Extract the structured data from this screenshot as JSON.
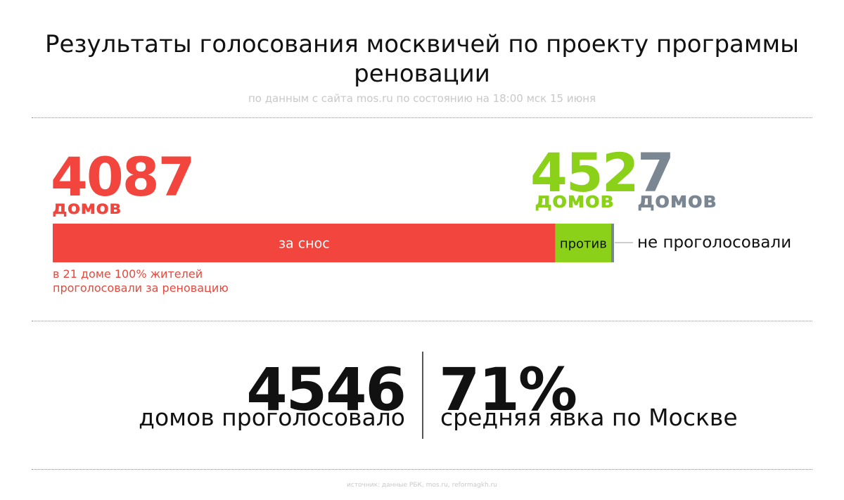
{
  "header": {
    "title": "Результаты голосования москвичей по проекту программы реновации",
    "subtitle": "по данным с сайта mos.ru по состоянию на 18:00 мск 15 июня"
  },
  "colors": {
    "for": "#f2453d",
    "against": "#8bd11a",
    "no_vote": "#7a8793",
    "text": "#111111"
  },
  "chart_data": {
    "type": "bar",
    "orientation": "horizontal-stacked",
    "categories": [
      "за снос",
      "против",
      "не проголосовали"
    ],
    "values": [
      4087,
      452,
      7
    ],
    "unit": "домов",
    "segments": [
      {
        "label": "за снос",
        "value": 4087,
        "count_text": "4087",
        "unit": "домов",
        "color": "#f2453d"
      },
      {
        "label": "против",
        "value": 452,
        "count_text": "452",
        "unit": "домов",
        "color": "#8bd11a"
      },
      {
        "label": "не проголосовали",
        "value": 7,
        "count_text": "7",
        "unit": "домов",
        "color": "#7a8793"
      }
    ],
    "annotation": "в 21 доме 100% жителей проголосовали за реновацию"
  },
  "summary": {
    "total_count": "4546",
    "total_label": "домов проголосовало",
    "turnout_value": "71%",
    "turnout_label": "средняя явка по Москве"
  },
  "source": "источник: данные РБК, mos.ru, reformagkh.ru"
}
